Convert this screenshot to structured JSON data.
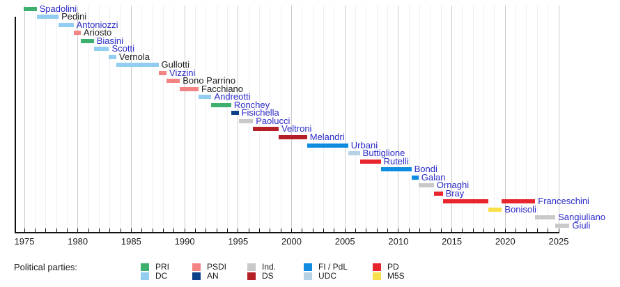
{
  "chart_data": {
    "type": "timeline",
    "description": "Gantt-style timeline of Italian culture ministers colored by political party",
    "x_axis": {
      "min_year": 1975,
      "max_year": 2025,
      "tick_every_years": 1,
      "label_every_years": 5,
      "tick_labels": [
        "1975",
        "1980",
        "1985",
        "1990",
        "1995",
        "2000",
        "2005",
        "2010",
        "2015",
        "2020",
        "2025"
      ]
    },
    "parties": {
      "PRI": {
        "label": "PRI",
        "color": "#3CB06C"
      },
      "DC": {
        "label": "DC",
        "color": "#93CDF1"
      },
      "PSDI": {
        "label": "PSDI",
        "color": "#F28484"
      },
      "AN": {
        "label": "AN",
        "color": "#0C4088"
      },
      "Ind.": {
        "label": "Ind.",
        "color": "#C9C9C9"
      },
      "DS": {
        "label": "DS",
        "color": "#B42025"
      },
      "FI/PdL": {
        "label": "FI / PdL",
        "color": "#0F8BE0"
      },
      "UDC": {
        "label": "UDC",
        "color": "#B7D2E5"
      },
      "PD": {
        "label": "PD",
        "color": "#E8242C"
      },
      "M5S": {
        "label": "M5S",
        "color": "#F8E04A"
      }
    },
    "ministers": [
      {
        "name": "Spadolini",
        "party": "PRI",
        "linked": true,
        "terms": [
          [
            1974.95,
            1976.15
          ]
        ]
      },
      {
        "name": "Pedini",
        "party": "DC",
        "linked": false,
        "terms": [
          [
            1976.15,
            1978.2
          ]
        ]
      },
      {
        "name": "Antoniozzi",
        "party": "DC",
        "linked": true,
        "terms": [
          [
            1978.2,
            1979.6
          ]
        ]
      },
      {
        "name": "Ariosto",
        "party": "PSDI",
        "linked": false,
        "terms": [
          [
            1979.6,
            1980.27
          ]
        ]
      },
      {
        "name": "Biasini",
        "party": "PRI",
        "linked": true,
        "terms": [
          [
            1980.27,
            1981.5
          ]
        ]
      },
      {
        "name": "Scotti",
        "party": "DC",
        "linked": true,
        "terms": [
          [
            1981.5,
            1982.92
          ]
        ]
      },
      {
        "name": "Vernola",
        "party": "DC",
        "linked": false,
        "terms": [
          [
            1982.92,
            1983.6
          ]
        ]
      },
      {
        "name": "Gullotti",
        "party": "DC",
        "linked": false,
        "terms": [
          [
            1983.6,
            1987.55
          ]
        ]
      },
      {
        "name": "Vizzini",
        "party": "PSDI",
        "linked": true,
        "terms": [
          [
            1987.55,
            1988.3
          ]
        ]
      },
      {
        "name": "Bono Parrino",
        "party": "PSDI",
        "linked": false,
        "terms": [
          [
            1988.3,
            1989.55
          ]
        ]
      },
      {
        "name": "Facchiano",
        "party": "PSDI",
        "linked": false,
        "terms": [
          [
            1989.55,
            1991.3
          ]
        ]
      },
      {
        "name": "Andreotti",
        "party": "DC",
        "linked": true,
        "terms": [
          [
            1991.3,
            1992.5
          ]
        ]
      },
      {
        "name": "Ronchey",
        "party": "PRI",
        "linked": true,
        "terms": [
          [
            1992.5,
            1994.35
          ]
        ]
      },
      {
        "name": "Fisichella",
        "party": "AN",
        "linked": true,
        "terms": [
          [
            1994.35,
            1995.05
          ]
        ]
      },
      {
        "name": "Paolucci",
        "party": "Ind.",
        "linked": true,
        "terms": [
          [
            1995.05,
            1996.4
          ]
        ]
      },
      {
        "name": "Veltroni",
        "party": "DS",
        "linked": true,
        "terms": [
          [
            1996.4,
            1998.8
          ]
        ]
      },
      {
        "name": "Melandri",
        "party": "DS",
        "linked": true,
        "terms": [
          [
            1998.8,
            2001.45
          ]
        ]
      },
      {
        "name": "Urbani",
        "party": "FI/PdL",
        "linked": true,
        "terms": [
          [
            2001.45,
            2005.3
          ]
        ]
      },
      {
        "name": "Buttiglione",
        "party": "UDC",
        "linked": true,
        "terms": [
          [
            2005.3,
            2006.4
          ]
        ]
      },
      {
        "name": "Rutelli",
        "party": "PD",
        "linked": true,
        "terms": [
          [
            2006.4,
            2008.35
          ]
        ]
      },
      {
        "name": "Bondi",
        "party": "FI/PdL",
        "linked": true,
        "terms": [
          [
            2008.35,
            2011.22
          ]
        ]
      },
      {
        "name": "Galan",
        "party": "FI/PdL",
        "linked": true,
        "terms": [
          [
            2011.22,
            2011.88
          ]
        ]
      },
      {
        "name": "Ornaghi",
        "party": "Ind.",
        "linked": true,
        "terms": [
          [
            2011.88,
            2013.32
          ]
        ]
      },
      {
        "name": "Bray",
        "party": "PD",
        "linked": true,
        "terms": [
          [
            2013.32,
            2014.15
          ]
        ]
      },
      {
        "name": "Franceschini",
        "party": "PD",
        "linked": true,
        "terms": [
          [
            2014.15,
            2018.42
          ],
          [
            2019.68,
            2022.8
          ]
        ]
      },
      {
        "name": "Bonisoli",
        "party": "M5S",
        "linked": true,
        "terms": [
          [
            2018.42,
            2019.68
          ]
        ]
      },
      {
        "name": "Sangiuliano",
        "party": "Ind.",
        "linked": true,
        "terms": [
          [
            2022.8,
            2024.68
          ]
        ]
      },
      {
        "name": "Giuli",
        "party": "Ind.",
        "linked": true,
        "terms": [
          [
            2024.68,
            2026.0
          ]
        ]
      }
    ]
  },
  "legend": {
    "title": "Political parties:",
    "columns": [
      [
        "PRI",
        "DC"
      ],
      [
        "PSDI",
        "AN"
      ],
      [
        "Ind.",
        "DS"
      ],
      [
        "FI/PdL",
        "UDC"
      ],
      [
        "PD",
        "M5S"
      ]
    ]
  }
}
